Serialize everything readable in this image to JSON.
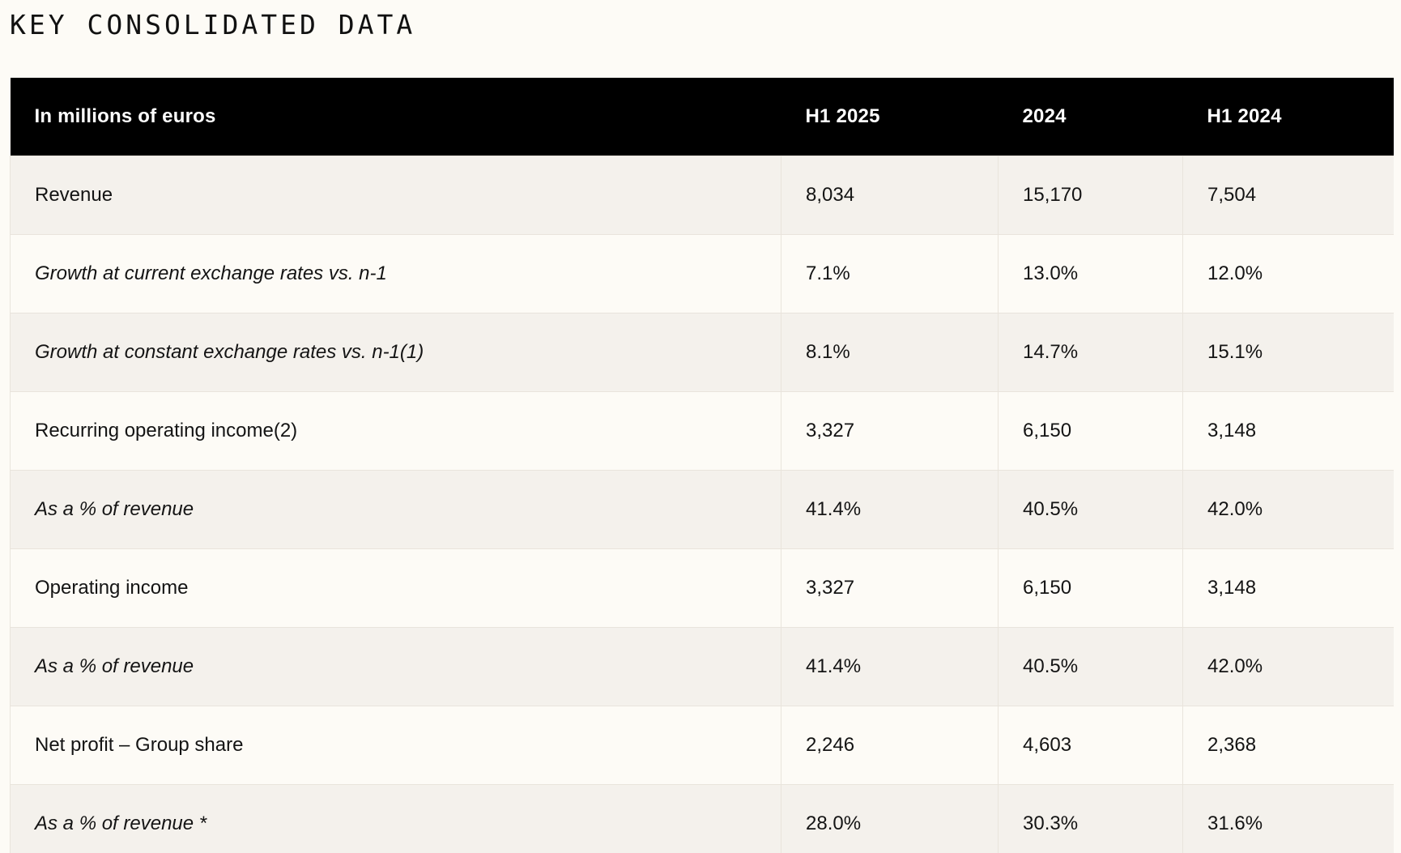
{
  "page": {
    "title": "KEY CONSOLIDATED DATA"
  },
  "table": {
    "headers": [
      "In millions of euros",
      "H1 2025",
      "2024",
      "H1 2024"
    ],
    "rows": [
      {
        "label": "Revenue",
        "values": [
          "8,034",
          "15,170",
          "7,504"
        ],
        "italic": false
      },
      {
        "label": "Growth at current exchange rates vs. n-1",
        "values": [
          "7.1%",
          "13.0%",
          "12.0%"
        ],
        "italic": true
      },
      {
        "label": "Growth at constant exchange rates vs. n-1(1)",
        "values": [
          "8.1%",
          "14.7%",
          "15.1%"
        ],
        "italic": true
      },
      {
        "label": "Recurring operating income(2)",
        "values": [
          "3,327",
          "6,150",
          "3,148"
        ],
        "italic": false
      },
      {
        "label": "As a % of revenue",
        "values": [
          "41.4%",
          "40.5%",
          "42.0%"
        ],
        "italic": true
      },
      {
        "label": "Operating income",
        "values": [
          "3,327",
          "6,150",
          "3,148"
        ],
        "italic": false
      },
      {
        "label": "As a % of revenue",
        "values": [
          "41.4%",
          "40.5%",
          "42.0%"
        ],
        "italic": true
      },
      {
        "label": "Net profit – Group share",
        "values": [
          "2,246",
          "4,603",
          "2,368"
        ],
        "italic": false
      },
      {
        "label": "As a % of revenue *",
        "values": [
          "28.0%",
          "30.3%",
          "31.6%"
        ],
        "italic": true
      }
    ]
  },
  "colors": {
    "background": "#fdfbf6",
    "header_background": "#000000",
    "header_text": "#ffffff",
    "row_shaded": "#f4f1ec",
    "row_plain": "#fdfbf6",
    "border": "#e9e4dc"
  }
}
